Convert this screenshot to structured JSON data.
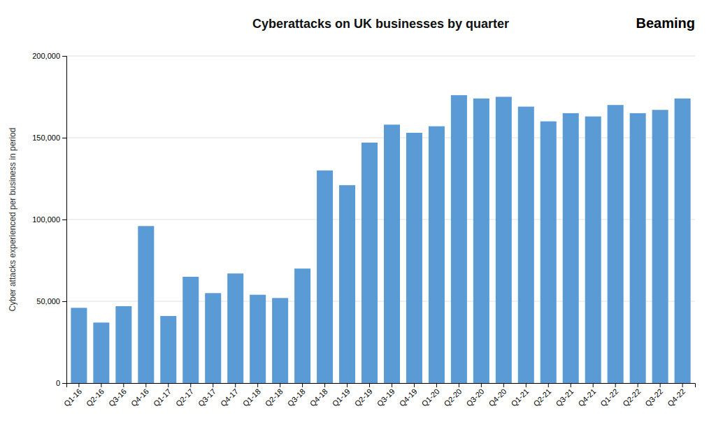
{
  "chart_data": {
    "type": "bar",
    "title": "Cyberattacks on UK businesses by quarter",
    "ylabel": "Cyber attacks experienced per business in period",
    "annotations": [
      "Beaming"
    ],
    "categories": [
      "Q1-16",
      "Q2-16",
      "Q3-16",
      "Q4-16",
      "Q1-17",
      "Q2-17",
      "Q3-17",
      "Q4-17",
      "Q1-18",
      "Q2-18",
      "Q3-18",
      "Q4-18",
      "Q1-19",
      "Q2-19",
      "Q3-19",
      "Q4-19",
      "Q1-20",
      "Q2-20",
      "Q3-20",
      "Q4-20",
      "Q1-21",
      "Q2-21",
      "Q3-21",
      "Q4-21",
      "Q1-22",
      "Q2-22",
      "Q3-22",
      "Q4-22"
    ],
    "values": [
      46000,
      37000,
      47000,
      96000,
      41000,
      65000,
      55000,
      67000,
      54000,
      52000,
      70000,
      130000,
      121000,
      147000,
      158000,
      153000,
      157000,
      176000,
      174000,
      175000,
      169000,
      160000,
      165000,
      163000,
      170000,
      165000,
      167000,
      174000
    ],
    "color": "#5B9BD5",
    "ylim": [
      0,
      200000
    ],
    "yticks": [
      0,
      {
        "value": 50000,
        "label": "50,000"
      },
      {
        "value": 100000,
        "label": "100,000"
      },
      {
        "value": 150000,
        "label": "150,000"
      },
      {
        "value": 200000,
        "label": "200,000"
      }
    ],
    "grid": true
  }
}
